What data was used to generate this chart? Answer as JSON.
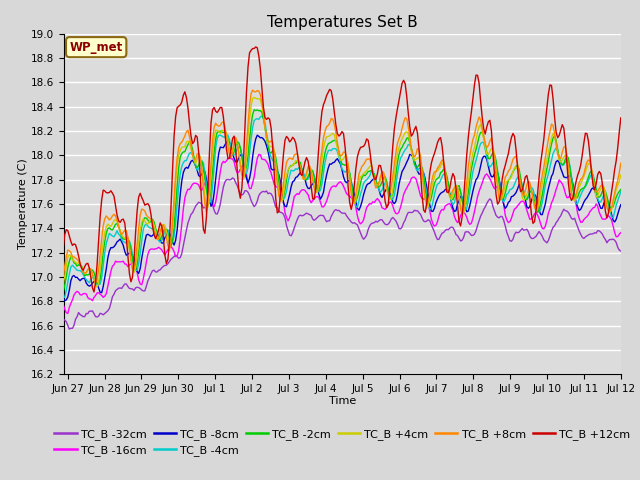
{
  "title": "Temperatures Set B",
  "xlabel": "Time",
  "ylabel": "Temperature (C)",
  "ylim": [
    16.2,
    19.0
  ],
  "tick_labels": [
    "Jun 27",
    "Jun 28",
    "Jun 29",
    "Jun 30",
    "Jul 1",
    "Jul 2",
    "Jul 3",
    "Jul 4",
    "Jul 5",
    "Jul 6",
    "Jul 7",
    "Jul 8",
    "Jul 9",
    "Jul 10",
    "Jul 11",
    "Jul 12"
  ],
  "series_names": [
    "TC_B -32cm",
    "TC_B -16cm",
    "TC_B -8cm",
    "TC_B -4cm",
    "TC_B -2cm",
    "TC_B +4cm",
    "TC_B +8cm",
    "TC_B +12cm"
  ],
  "series_colors": [
    "#9933cc",
    "#ff00ff",
    "#0000cc",
    "#00cccc",
    "#00cc00",
    "#cccc00",
    "#ff8800",
    "#cc0000"
  ],
  "annotation_text": "WP_met",
  "bg_color": "#dcdcdc",
  "grid_color": "#ffffff",
  "fig_bg": "#d8d8d8",
  "title_fontsize": 11,
  "tick_fontsize": 7.5,
  "label_fontsize": 8,
  "legend_fontsize": 8,
  "lw": 1.0
}
